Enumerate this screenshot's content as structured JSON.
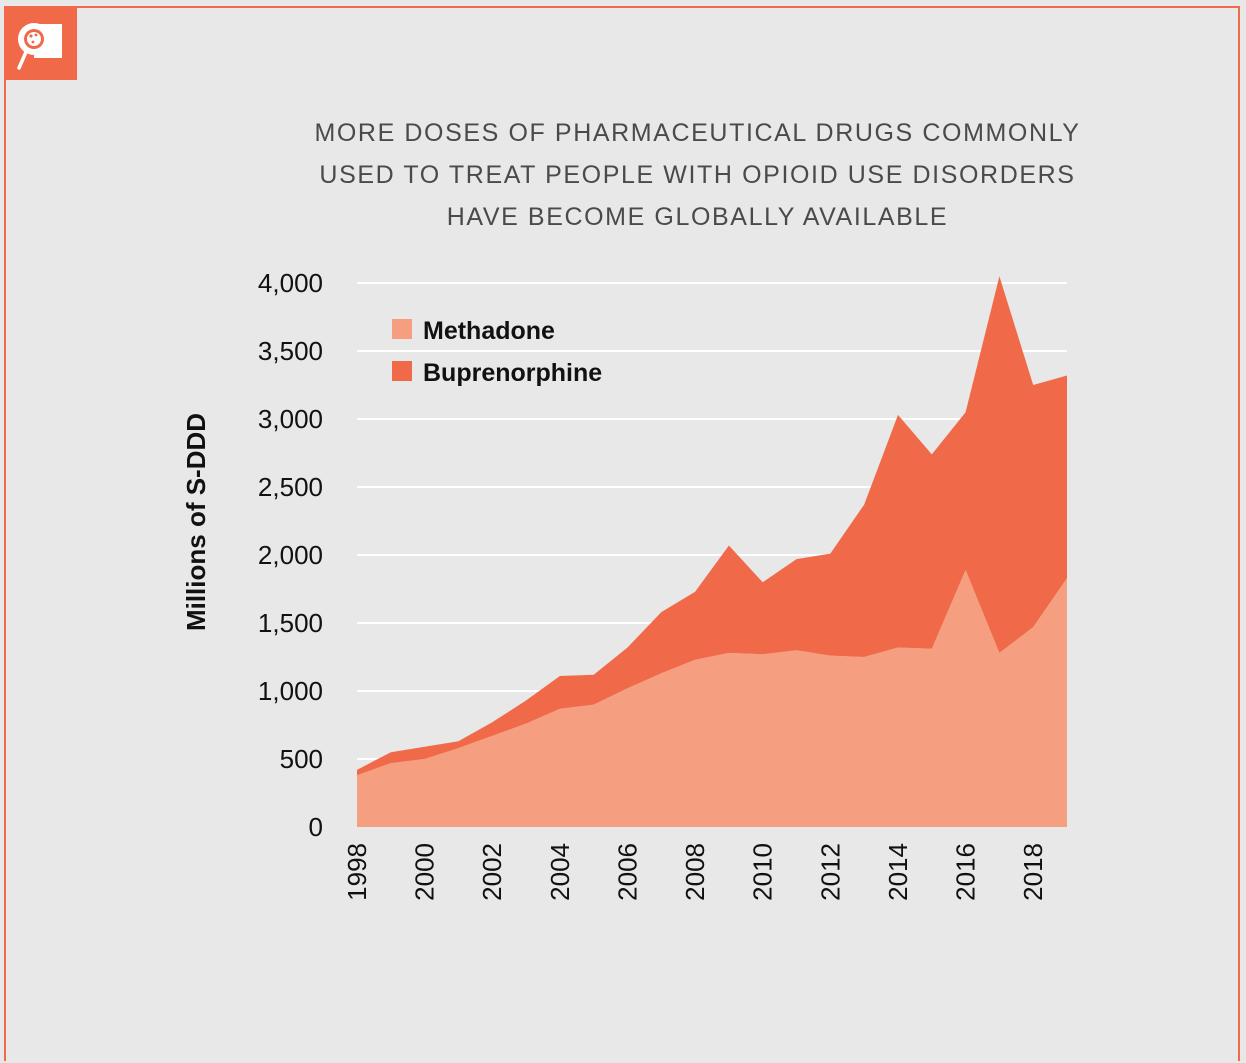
{
  "colors": {
    "accent": "#f06a4a",
    "methadone": "#f69f80",
    "buprenorphine": "#f06a4a",
    "background": "#e8e8e8",
    "grid": "#ffffff"
  },
  "header": {
    "icon": "magnifier-pill-icon"
  },
  "chart_data": {
    "type": "area",
    "stacked": true,
    "title_lines": [
      "MORE DOSES OF PHARMACEUTICAL DRUGS COMMONLY",
      "USED TO TREAT PEOPLE WITH OPIOID USE DISORDERS",
      "HAVE BECOME GLOBALLY AVAILABLE"
    ],
    "ylabel": "Millions of S-DDD",
    "xlabel": "",
    "ylim": [
      0,
      4000
    ],
    "yticks": [
      0,
      500,
      1000,
      1500,
      2000,
      2500,
      3000,
      3500,
      4000
    ],
    "ytick_labels": [
      "0",
      "500",
      "1,000",
      "1,500",
      "2,000",
      "2,500",
      "3,000",
      "3,500",
      "4,000"
    ],
    "x": [
      1998,
      1999,
      2000,
      2001,
      2002,
      2003,
      2004,
      2005,
      2006,
      2007,
      2008,
      2009,
      2010,
      2011,
      2012,
      2013,
      2014,
      2015,
      2016,
      2017,
      2018,
      2019
    ],
    "xticks": [
      1998,
      2000,
      2002,
      2004,
      2006,
      2008,
      2010,
      2012,
      2014,
      2016,
      2018
    ],
    "xtick_labels": [
      "1998",
      "2000",
      "2002",
      "2004",
      "2006",
      "2008",
      "2010",
      "2012",
      "2014",
      "2016",
      "2018"
    ],
    "grid": true,
    "legend_position": "top-left",
    "series": [
      {
        "name": "Methadone",
        "values": [
          380,
          470,
          500,
          580,
          670,
          760,
          870,
          900,
          1020,
          1130,
          1230,
          1280,
          1270,
          1300,
          1260,
          1250,
          1320,
          1310,
          1890,
          1280,
          1470,
          1830
        ]
      },
      {
        "name": "Buprenorphine",
        "values": [
          40,
          80,
          90,
          50,
          100,
          170,
          240,
          220,
          300,
          450,
          500,
          790,
          530,
          670,
          750,
          1120,
          1710,
          1430,
          1160,
          2770,
          1780,
          1490
        ]
      }
    ]
  }
}
